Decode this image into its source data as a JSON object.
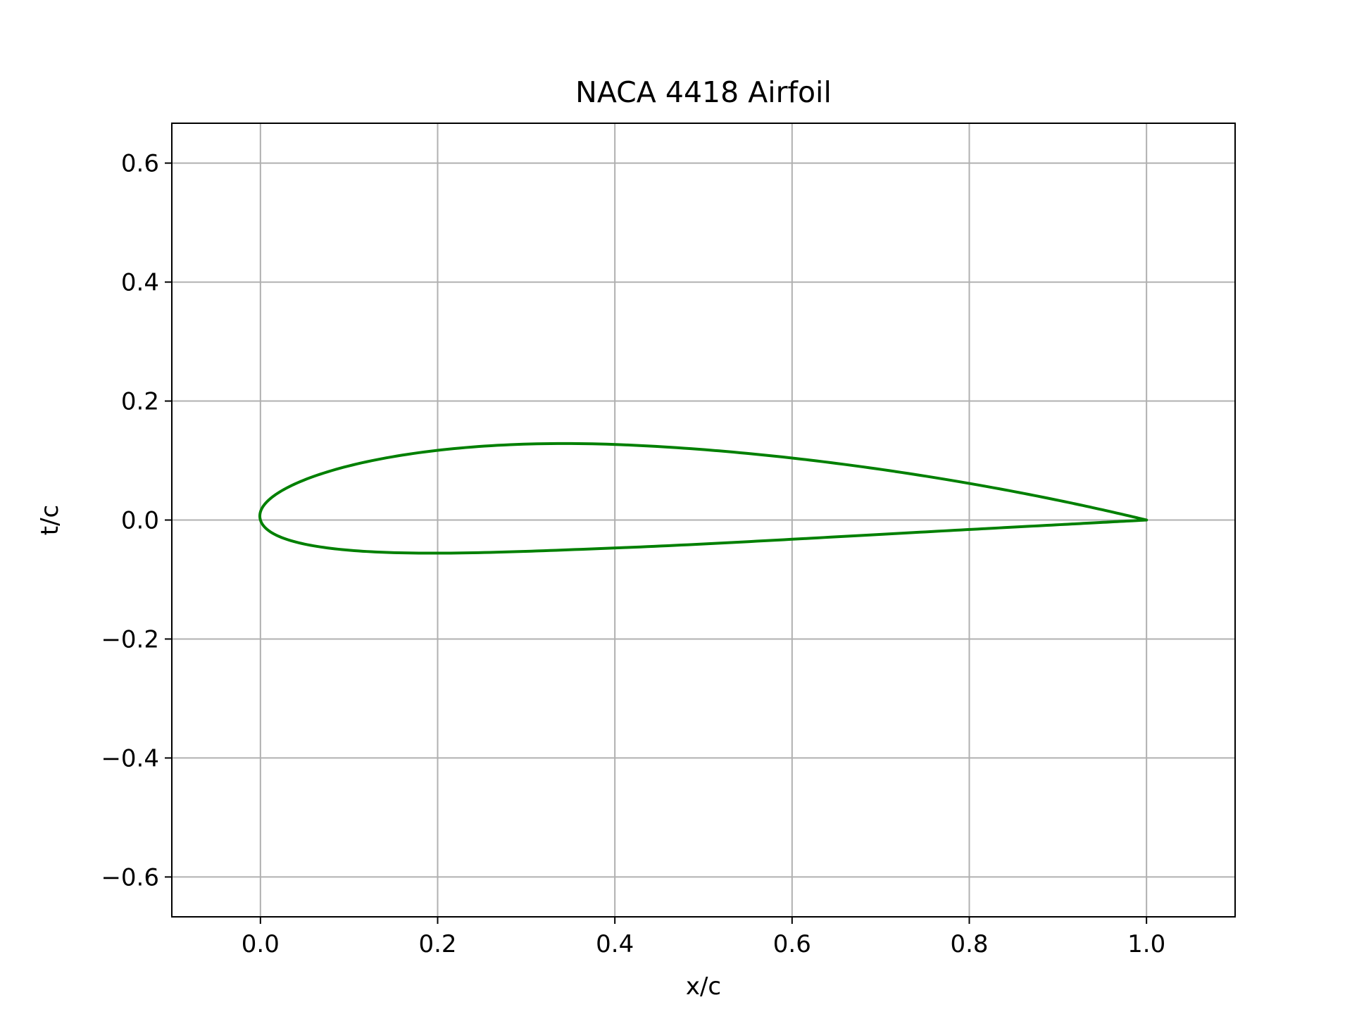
{
  "chart_data": {
    "type": "line",
    "title": "NACA 4418 Airfoil",
    "xlabel": "x/c",
    "ylabel": "t/c",
    "xlim": [
      -0.1,
      1.1
    ],
    "ylim": [
      -0.667,
      0.667
    ],
    "xticks": [
      0.0,
      0.2,
      0.4,
      0.6,
      0.8,
      1.0
    ],
    "xtick_labels": [
      "0.0",
      "0.2",
      "0.4",
      "0.6",
      "0.8",
      "1.0"
    ],
    "yticks": [
      -0.6,
      -0.4,
      -0.2,
      0.0,
      0.2,
      0.4,
      0.6
    ],
    "ytick_labels": [
      "−0.6",
      "−0.4",
      "−0.2",
      "0.0",
      "0.2",
      "0.4",
      "0.6"
    ],
    "grid": true,
    "aspect": "equal",
    "color": "#008000",
    "naca": {
      "m": 0.04,
      "p": 0.4,
      "t": 0.18
    },
    "series": [
      {
        "x": [
          1.0,
          0.9,
          0.8,
          0.7,
          0.6,
          0.5,
          0.4,
          0.34,
          0.3,
          0.25,
          0.2,
          0.15,
          0.1,
          0.075,
          0.05,
          0.025,
          0.0125,
          0.0,
          0.0125,
          0.025,
          0.05,
          0.075,
          0.1,
          0.15,
          0.2,
          0.25,
          0.3,
          0.4,
          0.5,
          0.6,
          0.7,
          0.8,
          0.9,
          1.0
        ],
        "y": [
          0.0,
          0.032,
          0.061,
          0.085,
          0.105,
          0.119,
          0.127,
          0.128,
          0.127,
          0.124,
          0.118,
          0.109,
          0.095,
          0.086,
          0.073,
          0.055,
          0.041,
          0.005,
          -0.025,
          -0.032,
          -0.04,
          -0.045,
          -0.048,
          -0.052,
          -0.054,
          -0.054,
          -0.053,
          -0.048,
          -0.041,
          -0.034,
          -0.025,
          -0.016,
          -0.008,
          0.0
        ]
      }
    ]
  }
}
